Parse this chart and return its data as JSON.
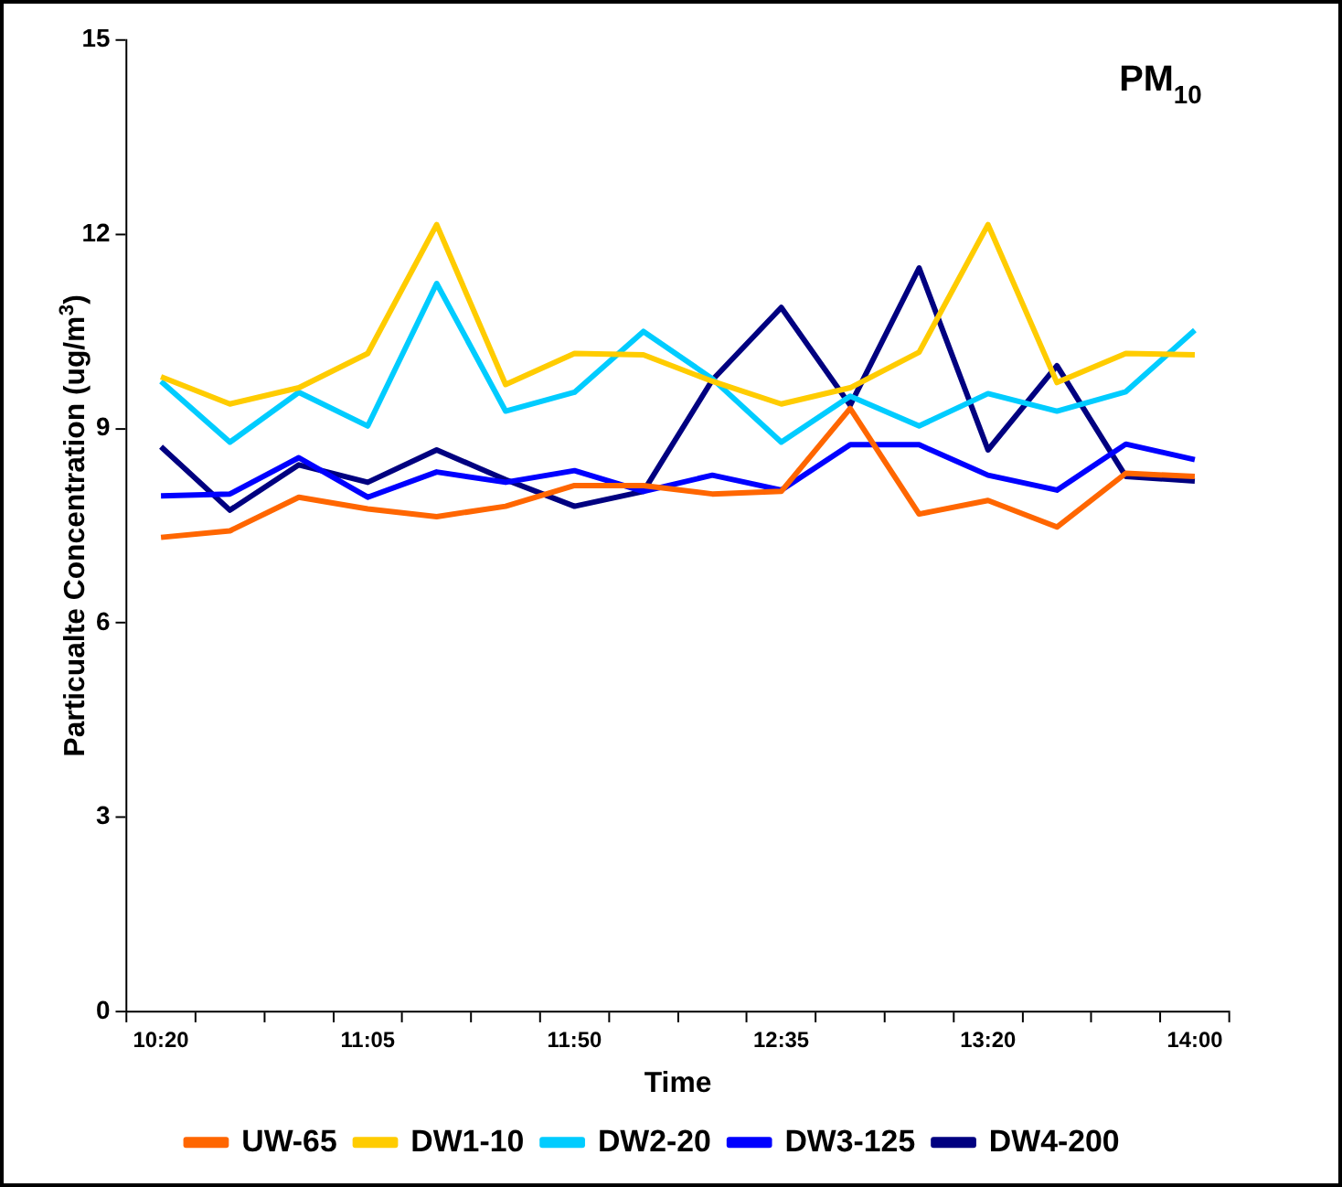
{
  "chart_data": {
    "type": "line",
    "title": "PM$_{10}$",
    "xlabel": "Time",
    "ylabel": "Particualte Concentration (ug/m$^{3}$)",
    "categories": [
      "10:20",
      null,
      null,
      "11:05",
      null,
      null,
      "11:50",
      null,
      null,
      "12:35",
      null,
      null,
      "13:20",
      null,
      null,
      "14:00"
    ],
    "series": [
      {
        "name": "UW-65",
        "color": "#ff6600",
        "values": [
          7.32,
          7.42,
          7.94,
          7.76,
          7.64,
          7.8,
          8.12,
          8.12,
          7.99,
          8.03,
          9.31,
          7.68,
          7.89,
          7.48,
          8.31,
          8.26
        ]
      },
      {
        "name": "DW1-10",
        "color": "#ffcc00",
        "values": [
          9.8,
          9.38,
          9.63,
          10.16,
          12.15,
          9.68,
          10.16,
          10.14,
          9.73,
          9.38,
          9.63,
          10.18,
          12.15,
          9.71,
          10.16,
          10.14
        ]
      },
      {
        "name": "DW2-20",
        "color": "#00ccff",
        "values": [
          9.73,
          8.79,
          9.56,
          9.04,
          11.24,
          9.27,
          9.56,
          10.5,
          9.77,
          8.79,
          9.5,
          9.04,
          9.54,
          9.27,
          9.57,
          10.52
        ]
      },
      {
        "name": "DW3-125",
        "color": "#0000ff",
        "values": [
          7.96,
          7.99,
          8.55,
          7.94,
          8.33,
          8.17,
          8.35,
          8.03,
          8.28,
          8.05,
          8.75,
          8.75,
          8.28,
          8.05,
          8.76,
          8.52
        ]
      },
      {
        "name": "DW4-200",
        "color": "#000080",
        "values": [
          8.72,
          7.74,
          8.44,
          8.17,
          8.67,
          8.21,
          7.8,
          8.03,
          9.75,
          10.87,
          9.36,
          11.48,
          8.67,
          9.97,
          8.26,
          8.19
        ]
      }
    ],
    "ylim": [
      0,
      15
    ],
    "yticks": [
      0,
      3,
      6,
      9,
      12,
      15
    ],
    "grid": false,
    "legend": "bottom",
    "marker": "none",
    "line_style": "solid"
  }
}
